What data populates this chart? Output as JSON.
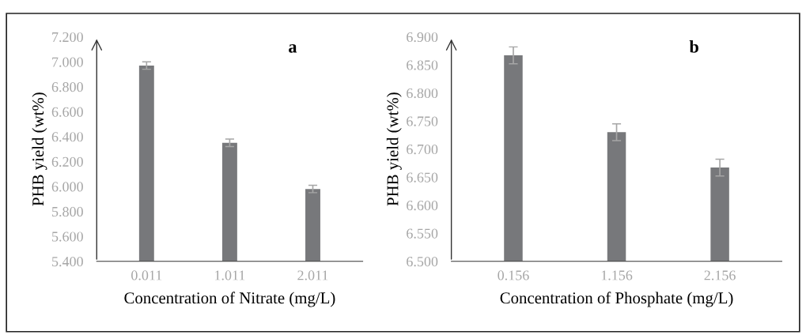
{
  "chart_data": [
    {
      "type": "bar",
      "annotations": [
        "a"
      ],
      "xlabel": "Concentration of Nitrate (mg/L)",
      "ylabel": "PHB yield (wt%)",
      "categories": [
        "0.011",
        "1.011",
        "2.011"
      ],
      "values": [
        6.97,
        6.35,
        5.98
      ],
      "errors": [
        0.03,
        0.03,
        0.03
      ],
      "color": "#77787b",
      "ylim": [
        5.4,
        7.2
      ],
      "yticks": [
        {
          "value": 5.4,
          "label": "5.400"
        },
        {
          "value": 5.6,
          "label": "5.600"
        },
        {
          "value": 5.8,
          "label": "5.800"
        },
        {
          "value": 6.0,
          "label": "6.000"
        },
        {
          "value": 6.2,
          "label": "6.200"
        },
        {
          "value": 6.4,
          "label": "6.400"
        },
        {
          "value": 6.6,
          "label": "6.600"
        },
        {
          "value": 6.8,
          "label": "6.800"
        },
        {
          "value": 7.0,
          "label": "7.000"
        },
        {
          "value": 7.2,
          "label": "7.200"
        }
      ],
      "grid": false,
      "legend": false
    },
    {
      "type": "bar",
      "annotations": [
        "b"
      ],
      "xlabel": "Concentration of Phosphate (mg/L)",
      "ylabel": "PHB yield (wt%)",
      "categories": [
        "0.156",
        "1.156",
        "2.156"
      ],
      "values": [
        6.867,
        6.73,
        6.667
      ],
      "errors": [
        0.015,
        0.015,
        0.015
      ],
      "color": "#77787b",
      "ylim": [
        6.5,
        6.9
      ],
      "yticks": [
        {
          "value": 6.5,
          "label": "6.500"
        },
        {
          "value": 6.55,
          "label": "6.550"
        },
        {
          "value": 6.6,
          "label": "6.600"
        },
        {
          "value": 6.65,
          "label": "6.650"
        },
        {
          "value": 6.7,
          "label": "6.700"
        },
        {
          "value": 6.75,
          "label": "6.750"
        },
        {
          "value": 6.8,
          "label": "6.800"
        },
        {
          "value": 6.85,
          "label": "6.850"
        },
        {
          "value": 6.9,
          "label": "6.900"
        }
      ],
      "grid": false,
      "legend": false
    }
  ]
}
